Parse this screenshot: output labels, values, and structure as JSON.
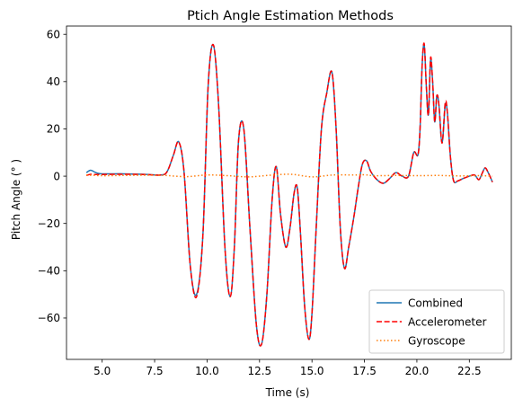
{
  "chart_data": {
    "type": "line",
    "title": "Ptich Angle Estimation Methods",
    "xlabel": "Time (s)",
    "ylabel": "Pitch Angle ($^\\circ$)",
    "ylabel_display": "Pitch Angle (° )",
    "xlim": [
      3.3,
      24.5
    ],
    "ylim": [
      -77.5,
      63.5
    ],
    "xticks": [
      5.0,
      7.5,
      10.0,
      12.5,
      15.0,
      17.5,
      20.0,
      22.5
    ],
    "xtick_labels": [
      "5.0",
      "7.5",
      "10.0",
      "12.5",
      "15.0",
      "17.5",
      "20.0",
      "22.5"
    ],
    "yticks": [
      -60,
      -40,
      -20,
      0,
      20,
      40,
      60
    ],
    "ytick_labels": [
      "−60",
      "−40",
      "−20",
      "0",
      "20",
      "40",
      "60"
    ],
    "grid": false,
    "legend_position": "lower-right",
    "series": [
      {
        "name": "Combined",
        "color": "#1f77b4",
        "style": "solid",
        "x": [
          4.25,
          4.45,
          4.7,
          5.0,
          6.0,
          7.0,
          7.8,
          8.1,
          8.4,
          8.65,
          8.9,
          9.2,
          9.5,
          9.8,
          10.05,
          10.3,
          10.55,
          10.85,
          11.1,
          11.3,
          11.5,
          11.75,
          12.05,
          12.35,
          12.6,
          12.85,
          13.1,
          13.3,
          13.5,
          13.75,
          13.95,
          14.15,
          14.3,
          14.45,
          14.65,
          14.85,
          15.0,
          15.2,
          15.45,
          15.7,
          15.95,
          16.15,
          16.35,
          16.55,
          16.75,
          17.0,
          17.2,
          17.4,
          17.6,
          17.8,
          18.1,
          18.4,
          18.7,
          19.0,
          19.3,
          19.6,
          19.85,
          20.05,
          20.15,
          20.25,
          20.35,
          20.45,
          20.55,
          20.65,
          20.75,
          20.85,
          20.95,
          21.05,
          21.2,
          21.35,
          21.45,
          21.6,
          21.75,
          21.95,
          22.2,
          22.5,
          22.75,
          22.95,
          23.1,
          23.25,
          23.4,
          23.6
        ],
        "y": [
          1.5,
          2.5,
          1.5,
          1.0,
          1.0,
          0.8,
          0.5,
          2.0,
          9.0,
          14.5,
          2.0,
          -38.0,
          -50.0,
          -25.0,
          38.0,
          55.5,
          30.0,
          -30.0,
          -51.0,
          -30.0,
          15.0,
          20.0,
          -23.0,
          -63.0,
          -71.0,
          -50.0,
          -10.0,
          4.0,
          -16.0,
          -30.0,
          -22.0,
          -7.0,
          -5.0,
          -24.0,
          -55.0,
          -69.0,
          -58.0,
          -22.0,
          20.0,
          35.0,
          44.0,
          20.0,
          -22.0,
          -39.0,
          -30.0,
          -17.0,
          -5.0,
          5.0,
          6.5,
          2.0,
          -1.5,
          -3.0,
          -1.0,
          1.5,
          0.0,
          0.0,
          10.0,
          9.0,
          20.0,
          47.0,
          55.5,
          38.0,
          26.0,
          49.0,
          40.0,
          23.0,
          34.0,
          30.0,
          14.0,
          30.0,
          27.0,
          8.0,
          -2.0,
          -2.0,
          -1.0,
          0.0,
          0.5,
          -1.5,
          1.0,
          3.5,
          1.5,
          -2.5
        ]
      },
      {
        "name": "Accelerometer",
        "color": "#ff0000",
        "style": "dashed",
        "x": [
          4.25,
          4.45,
          4.7,
          5.0,
          6.0,
          7.0,
          7.8,
          8.1,
          8.4,
          8.65,
          8.9,
          9.2,
          9.5,
          9.8,
          10.05,
          10.3,
          10.55,
          10.85,
          11.1,
          11.3,
          11.5,
          11.75,
          12.05,
          12.35,
          12.6,
          12.85,
          13.1,
          13.3,
          13.5,
          13.75,
          13.95,
          14.15,
          14.3,
          14.45,
          14.65,
          14.85,
          15.0,
          15.2,
          15.45,
          15.7,
          15.95,
          16.15,
          16.35,
          16.55,
          16.75,
          17.0,
          17.2,
          17.4,
          17.6,
          17.8,
          18.1,
          18.4,
          18.7,
          19.0,
          19.3,
          19.6,
          19.85,
          20.05,
          20.15,
          20.25,
          20.35,
          20.45,
          20.55,
          20.65,
          20.75,
          20.85,
          20.95,
          21.05,
          21.2,
          21.35,
          21.45,
          21.6,
          21.75,
          21.95,
          22.2,
          22.5,
          22.75,
          22.95,
          23.1,
          23.25,
          23.4,
          23.6
        ],
        "y": [
          0.3,
          0.8,
          0.7,
          0.7,
          0.8,
          0.7,
          0.5,
          2.0,
          9.0,
          14.5,
          2.0,
          -38.0,
          -51.0,
          -25.0,
          38.0,
          55.5,
          30.0,
          -30.0,
          -51.0,
          -30.0,
          15.0,
          20.0,
          -23.0,
          -63.0,
          -71.0,
          -50.0,
          -10.0,
          4.0,
          -16.0,
          -30.0,
          -22.0,
          -7.0,
          -5.0,
          -24.0,
          -55.0,
          -69.0,
          -58.0,
          -22.0,
          20.0,
          35.0,
          44.0,
          20.0,
          -22.0,
          -39.0,
          -30.0,
          -17.0,
          -5.0,
          5.0,
          6.5,
          2.0,
          -1.5,
          -3.0,
          -1.0,
          1.5,
          0.0,
          0.0,
          10.0,
          9.0,
          20.0,
          47.0,
          56.0,
          38.0,
          26.0,
          50.0,
          40.0,
          23.0,
          34.0,
          30.0,
          14.0,
          31.0,
          27.0,
          8.0,
          -2.0,
          -2.0,
          -1.0,
          0.0,
          0.5,
          -1.5,
          1.0,
          3.5,
          1.5,
          -2.5
        ]
      },
      {
        "name": "Gyroscope",
        "color": "#ff7f0e",
        "style": "dotted",
        "x": [
          4.25,
          5.0,
          6.0,
          7.0,
          8.0,
          9.0,
          10.0,
          11.0,
          12.0,
          13.0,
          14.0,
          15.0,
          16.0,
          17.0,
          17.5,
          18.0,
          19.0,
          20.0,
          21.0,
          22.0,
          23.0,
          23.6
        ],
        "y": [
          0.5,
          0.2,
          0.3,
          0.4,
          0.3,
          -0.2,
          0.5,
          0.2,
          -0.3,
          0.4,
          0.8,
          -0.3,
          0.5,
          0.5,
          0.6,
          0.2,
          0.3,
          0.2,
          0.3,
          0.1,
          0.2,
          0.0
        ]
      }
    ]
  }
}
